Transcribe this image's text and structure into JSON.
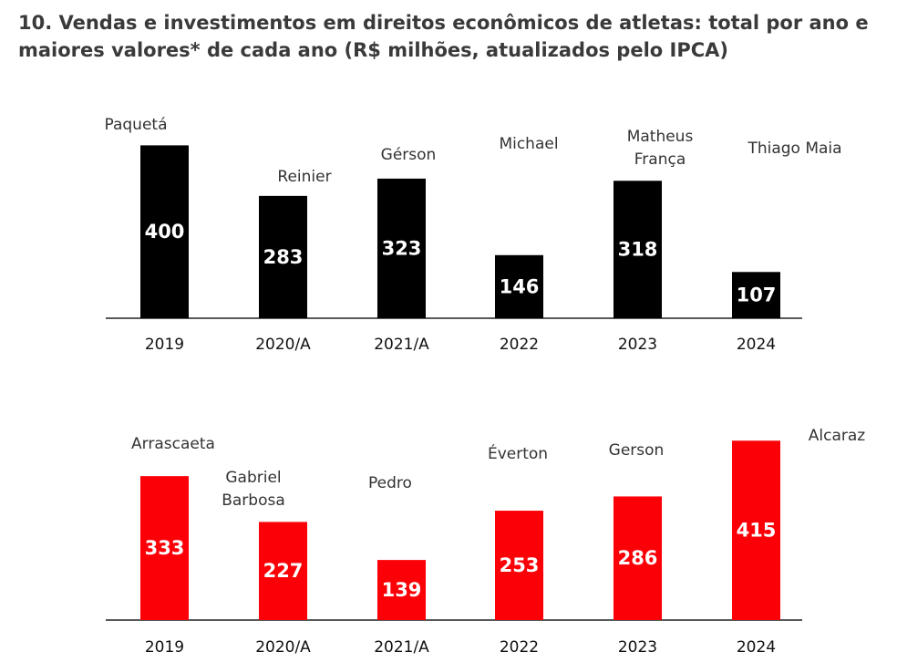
{
  "title": "10. Vendas e investimentos em direitos econômicos de atletas: total por ano e maiores valores* de cada ano (R$ milhões, atualizados pelo IPCA)",
  "chart_data": [
    {
      "type": "bar",
      "color": "#000000",
      "categories": [
        "2019",
        "2020/A",
        "2021/A",
        "2022",
        "2023",
        "2024"
      ],
      "values": [
        400,
        283,
        323,
        146,
        318,
        107
      ],
      "annotations": [
        [
          "Paquetá"
        ],
        [
          "Reinier"
        ],
        [
          "Gérson"
        ],
        [
          "Michael"
        ],
        [
          "Matheus",
          "França"
        ],
        [
          "Thiago Maia"
        ]
      ]
    },
    {
      "type": "bar",
      "color": "#fb0007",
      "categories": [
        "2019",
        "2020/A",
        "2021/A",
        "2022",
        "2023",
        "2024"
      ],
      "values": [
        333,
        227,
        139,
        253,
        286,
        415
      ],
      "annotations": [
        [
          "Arrascaeta"
        ],
        [
          "Gabriel",
          "Barbosa"
        ],
        [
          "Pedro"
        ],
        [
          "Éverton"
        ],
        [
          "Gerson"
        ],
        [
          "Alcaraz"
        ]
      ]
    }
  ]
}
